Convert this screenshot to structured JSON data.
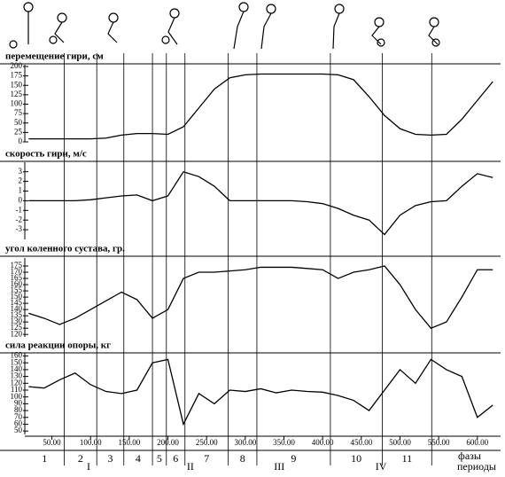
{
  "chart_data": {
    "type": "line",
    "x": [
      20,
      40,
      60,
      80,
      100,
      120,
      140,
      160,
      180,
      200,
      220,
      240,
      260,
      280,
      300,
      320,
      340,
      360,
      380,
      400,
      420,
      440,
      460,
      480,
      500,
      520,
      540,
      560,
      580,
      600,
      620
    ],
    "xlim": [
      15,
      630
    ],
    "xticks": [
      {
        "value": 50,
        "label": "50.00"
      },
      {
        "value": 100,
        "label": "100.00"
      },
      {
        "value": 150,
        "label": "150.00"
      },
      {
        "value": 200,
        "label": "200.00"
      },
      {
        "value": 250,
        "label": "250.00"
      },
      {
        "value": 300,
        "label": "300.00"
      },
      {
        "value": 350,
        "label": "350.00"
      },
      {
        "value": 400,
        "label": "400.00"
      },
      {
        "value": 450,
        "label": "450.00"
      },
      {
        "value": 500,
        "label": "500.00"
      },
      {
        "value": 550,
        "label": "550.00"
      },
      {
        "value": 600,
        "label": "600.00"
      }
    ],
    "color": "#000000",
    "phase_bounds": [
      66,
      108,
      143,
      180,
      198,
      222,
      278,
      315,
      410,
      477,
      541
    ],
    "phases": [
      "1",
      "2",
      "3",
      "4",
      "5",
      "6",
      "7",
      "8",
      "9",
      "10",
      "11"
    ],
    "periods": [
      {
        "label": "I",
        "phases": [
          "1",
          "2",
          "3",
          "4"
        ]
      },
      {
        "label": "II",
        "phases": [
          "5",
          "6",
          "7"
        ]
      },
      {
        "label": "III",
        "phases": [
          "8",
          "9"
        ]
      },
      {
        "label": "IV",
        "phases": [
          "10",
          "11"
        ]
      }
    ],
    "phases_title": "фазы",
    "periods_title": "периоды",
    "panels": [
      {
        "title": "перемещение гири, см",
        "ylim": [
          0,
          200
        ],
        "yticks": [
          0,
          25,
          50,
          75,
          100,
          125,
          150,
          175,
          200
        ],
        "values": [
          8,
          8,
          8,
          8,
          8,
          10,
          18,
          22,
          22,
          20,
          40,
          90,
          140,
          170,
          178,
          180,
          180,
          180,
          180,
          180,
          178,
          165,
          120,
          70,
          35,
          20,
          18,
          20,
          60,
          110,
          160
        ]
      },
      {
        "title": "скорость гири, м/с",
        "ylim": [
          -4,
          3.8
        ],
        "yticks": [
          -3,
          -2,
          -1,
          0,
          1,
          2,
          3
        ],
        "values": [
          0,
          0,
          0,
          0,
          0.1,
          0.3,
          0.5,
          0.6,
          0,
          0.5,
          3,
          2.5,
          1.5,
          0,
          0,
          0,
          0,
          0,
          -0.1,
          -0.3,
          -0.8,
          -1.5,
          -2,
          -3.5,
          -1.5,
          -0.5,
          -0.1,
          0,
          1.5,
          2.8,
          2.4
        ]
      },
      {
        "title": "угол коленного сустава, гр.",
        "ylim": [
          118,
          180
        ],
        "yticks": [
          120,
          125,
          130,
          135,
          140,
          145,
          150,
          155,
          160,
          165,
          170,
          175
        ],
        "values": [
          137,
          133,
          128,
          133,
          140,
          147,
          154,
          148,
          133,
          140,
          165,
          170,
          170,
          171,
          172,
          174,
          174,
          174,
          173,
          172,
          165,
          170,
          172,
          175,
          160,
          140,
          125,
          130,
          150,
          172,
          172
        ]
      },
      {
        "title": "сила реакции опоры, кг",
        "ylim": [
          45,
          162
        ],
        "yticks": [
          50,
          60,
          70,
          80,
          90,
          100,
          110,
          120,
          130,
          140,
          150,
          160
        ],
        "values": [
          115,
          113,
          125,
          135,
          118,
          108,
          105,
          110,
          150,
          155,
          60,
          105,
          90,
          110,
          108,
          112,
          106,
          110,
          108,
          107,
          102,
          95,
          80,
          110,
          140,
          120,
          155,
          140,
          130,
          70,
          88
        ]
      }
    ]
  }
}
